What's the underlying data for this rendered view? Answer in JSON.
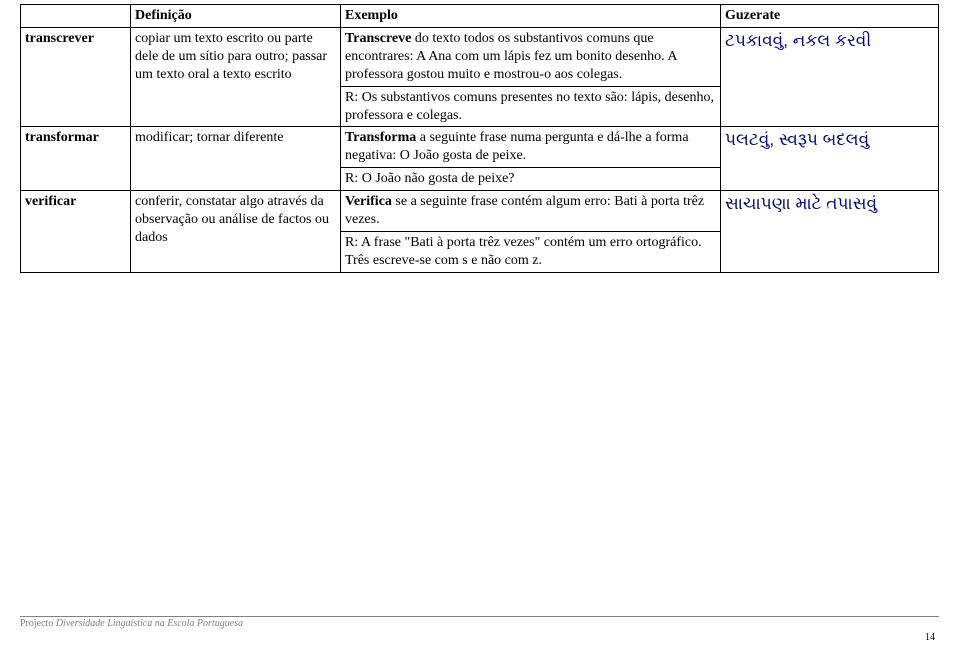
{
  "headers": {
    "col1": "",
    "col2": "Definição",
    "col3": "Exemplo",
    "col4": "Guzerate"
  },
  "rows": [
    {
      "term": "transcrever",
      "def": "copiar um texto escrito ou parte dele de um sítio para outro; passar um texto oral a texto escrito",
      "ex_lead": "Transcreve",
      "ex_body": " do texto todos os substantivos comuns que encontrares: A Ana com um lápis fez um bonito desenho. A professora gostou muito e mostrou-o aos colegas.",
      "ex_resp": "R: Os substantivos comuns presentes no texto são: lápis, desenho, professora e colegas.",
      "guj": "ટપકાવવું, નકલ કરવી"
    },
    {
      "term": "transformar",
      "def": "modificar; tornar diferente",
      "ex_lead": "Transforma",
      "ex_body": " a seguinte frase numa pergunta e dá-lhe a forma negativa: O João gosta de peixe.",
      "ex_resp": "R: O João não gosta de peixe?",
      "guj": "પલટવું, સ્વરૂપ બદલવું"
    },
    {
      "term": "verificar",
      "def": "conferir, constatar algo através da observação ou análise de factos ou dados",
      "ex_lead": "Verifica",
      "ex_body": " se a seguinte frase contém algum erro: Bati à porta trêz vezes.",
      "ex_resp": "R: A frase \"Bati à porta trêz vezes\" contém um erro ortográfico. Três escreve-se com s e não com z.",
      "guj": "સાચાપણા માટે તપાસવું"
    }
  ],
  "footer": {
    "project_label": "Projecto ",
    "project_name": "Diversidade Linguística na Escola Portuguesa",
    "page": "14"
  }
}
